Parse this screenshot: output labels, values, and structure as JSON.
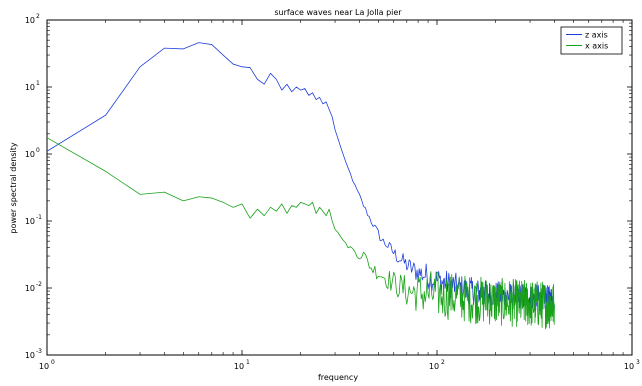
{
  "chart_data": {
    "type": "line",
    "title": "surface waves near La Jolla pier",
    "xlabel": "frequency",
    "ylabel": "power spectral density",
    "xscale": "log",
    "yscale": "log",
    "xlim": [
      1,
      1000
    ],
    "ylim": [
      0.001,
      100
    ],
    "x_ticks": [
      {
        "base": "10",
        "exp": "0",
        "value": 1
      },
      {
        "base": "10",
        "exp": "1",
        "value": 10
      },
      {
        "base": "10",
        "exp": "2",
        "value": 100
      },
      {
        "base": "10",
        "exp": "3",
        "value": 1000
      }
    ],
    "y_ticks": [
      {
        "base": "10",
        "exp": "-3",
        "value": 0.001
      },
      {
        "base": "10",
        "exp": "-2",
        "value": 0.01
      },
      {
        "base": "10",
        "exp": "-1",
        "value": 0.1
      },
      {
        "base": "10",
        "exp": "0",
        "value": 1
      },
      {
        "base": "10",
        "exp": "1",
        "value": 10
      },
      {
        "base": "10",
        "exp": "2",
        "value": 100
      }
    ],
    "grid": false,
    "legend_position": "top-right",
    "series": [
      {
        "name": "z axis",
        "color": "#1f3fdc",
        "points": [
          [
            1,
            1.1
          ],
          [
            2,
            3.8
          ],
          [
            3,
            20
          ],
          [
            4,
            38
          ],
          [
            5,
            37
          ],
          [
            6,
            46
          ],
          [
            7,
            43
          ],
          [
            8,
            30
          ],
          [
            9,
            22
          ],
          [
            10,
            20
          ],
          [
            11,
            19.5
          ],
          [
            12,
            13
          ],
          [
            13,
            11
          ],
          [
            14,
            16
          ],
          [
            15,
            13
          ],
          [
            16,
            9
          ],
          [
            17,
            11
          ],
          [
            18,
            8.5
          ],
          [
            19,
            10
          ],
          [
            20,
            9
          ],
          [
            21,
            9.5
          ],
          [
            22,
            7.5
          ],
          [
            23,
            8.2
          ],
          [
            24,
            6.5
          ],
          [
            25,
            7
          ],
          [
            26,
            5.6
          ],
          [
            27,
            6
          ],
          [
            28,
            4.6
          ],
          [
            29,
            3.6
          ],
          [
            30,
            2.3
          ],
          [
            32,
            1.3
          ],
          [
            34,
            0.75
          ],
          [
            36,
            0.5
          ],
          [
            38,
            0.33
          ],
          [
            40,
            0.24
          ],
          [
            42,
            0.17
          ],
          [
            44,
            0.13
          ],
          [
            46,
            0.1
          ],
          [
            48,
            0.08
          ],
          [
            50,
            0.065
          ],
          [
            52,
            0.052
          ],
          [
            55,
            0.045
          ],
          [
            58,
            0.038
          ],
          [
            62,
            0.03
          ],
          [
            66,
            0.026
          ],
          [
            70,
            0.022
          ],
          [
            75,
            0.019
          ],
          [
            80,
            0.017
          ],
          [
            90,
            0.015
          ],
          [
            100,
            0.013
          ],
          [
            120,
            0.011
          ],
          [
            140,
            0.0095
          ],
          [
            170,
            0.0085
          ],
          [
            200,
            0.008
          ],
          [
            250,
            0.0075
          ],
          [
            300,
            0.0072
          ],
          [
            350,
            0.007
          ],
          [
            400,
            0.0068
          ]
        ],
        "noise": 0.25
      },
      {
        "name": "x axis",
        "color": "#19a219",
        "points": [
          [
            1,
            1.75
          ],
          [
            2,
            0.55
          ],
          [
            3,
            0.25
          ],
          [
            4,
            0.27
          ],
          [
            5,
            0.2
          ],
          [
            6,
            0.23
          ],
          [
            7,
            0.22
          ],
          [
            8,
            0.19
          ],
          [
            9,
            0.16
          ],
          [
            10,
            0.18
          ],
          [
            11,
            0.11
          ],
          [
            12,
            0.15
          ],
          [
            13,
            0.12
          ],
          [
            14,
            0.16
          ],
          [
            15,
            0.14
          ],
          [
            16,
            0.18
          ],
          [
            17,
            0.13
          ],
          [
            18,
            0.17
          ],
          [
            19,
            0.16
          ],
          [
            20,
            0.19
          ],
          [
            21,
            0.18
          ],
          [
            22,
            0.17
          ],
          [
            23,
            0.19
          ],
          [
            24,
            0.13
          ],
          [
            25,
            0.16
          ],
          [
            26,
            0.14
          ],
          [
            27,
            0.12
          ],
          [
            28,
            0.15
          ],
          [
            29,
            0.1
          ],
          [
            30,
            0.075
          ],
          [
            32,
            0.06
          ],
          [
            34,
            0.045
          ],
          [
            36,
            0.04
          ],
          [
            38,
            0.035
          ],
          [
            40,
            0.03
          ],
          [
            42,
            0.032
          ],
          [
            44,
            0.025
          ],
          [
            46,
            0.02
          ],
          [
            50,
            0.017
          ],
          [
            55,
            0.014
          ],
          [
            60,
            0.012
          ],
          [
            70,
            0.009
          ],
          [
            80,
            0.0085
          ],
          [
            100,
            0.008
          ],
          [
            150,
            0.0068
          ],
          [
            200,
            0.0062
          ],
          [
            300,
            0.0058
          ],
          [
            400,
            0.0055
          ]
        ],
        "noise": 0.45
      }
    ]
  }
}
